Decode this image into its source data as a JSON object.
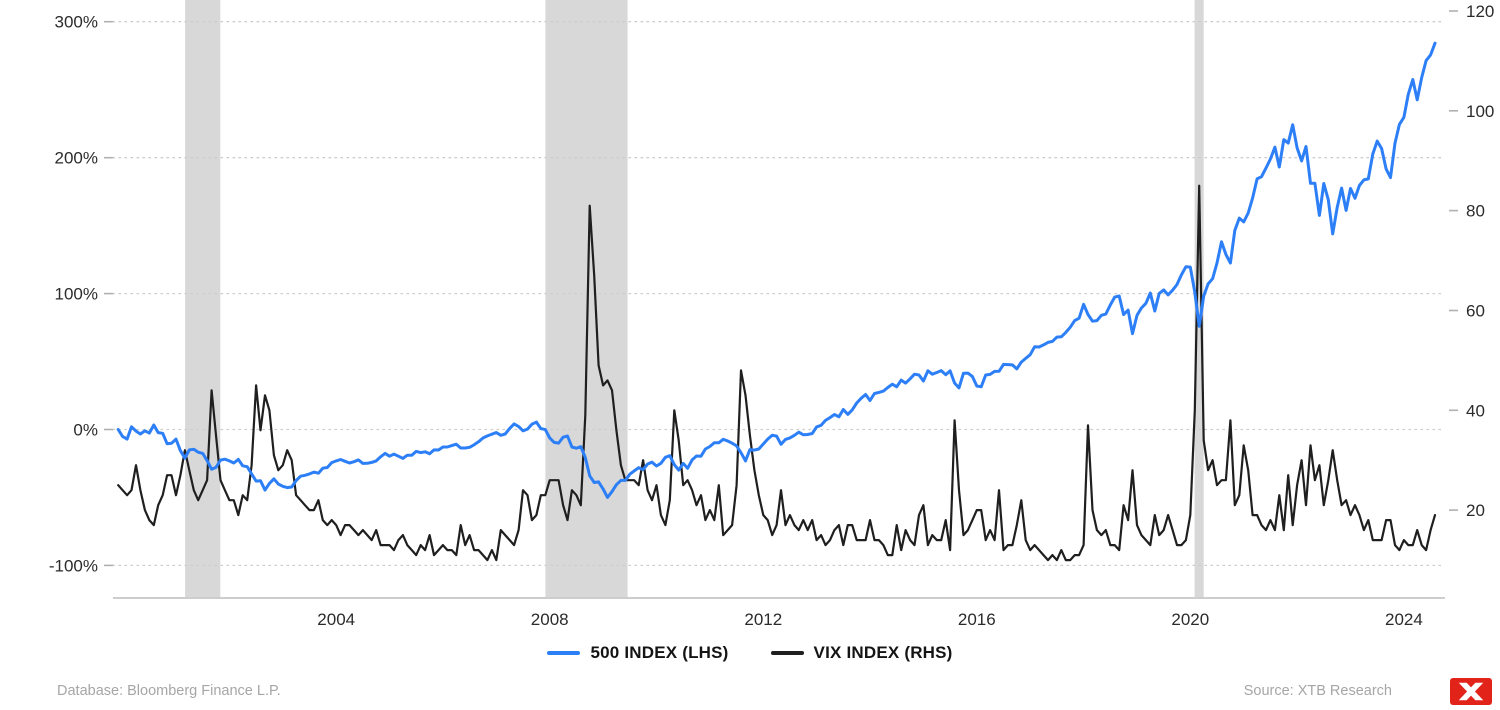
{
  "legend": [
    {
      "id": "sp500-line",
      "label": "500 INDEX (LHS)",
      "color": "#2d7ff7"
    },
    {
      "id": "vix-line",
      "label": "VIX INDEX (RHS)",
      "color": "#1f1f1f"
    }
  ],
  "footer": {
    "database": "Database: Bloomberg Finance L.P.",
    "source": "Source: XTB Research"
  },
  "colors": {
    "sp500": "#2d7ff7",
    "vix": "#1f1f1f",
    "grid": "#cdcdcd",
    "tick": "#b0b0b0",
    "band": "#d8d8d8",
    "axis_text": "#2b2b2b",
    "footer_text": "#a6a6a6",
    "logo_red": "#e2231a"
  },
  "chart_data": {
    "type": "line",
    "x_start": 1999.9167,
    "x_step": 0.0833333,
    "x_domain": [
      1999.82,
      2024.77
    ],
    "x_ticks": [
      2004,
      2008,
      2012,
      2016,
      2020,
      2024
    ],
    "left_axis": {
      "suffix": "%",
      "ticks": [
        300,
        200,
        100,
        0,
        -100
      ],
      "domain": [
        -124,
        316
      ]
    },
    "right_axis": {
      "suffix": "",
      "ticks": [
        120,
        100,
        80,
        60,
        40,
        20
      ],
      "domain": [
        2.4,
        122.2
      ]
    },
    "grid": "horizontal-dotted",
    "legend_position": "bottom-center",
    "shaded_periods": [
      [
        2001.17,
        2001.83
      ],
      [
        2007.92,
        2009.46
      ],
      [
        2020.08,
        2020.25
      ]
    ],
    "series": [
      {
        "id": "vix-line",
        "name": "VIX INDEX (RHS)",
        "axis": "right",
        "color": "#1f1f1f",
        "width": 2.2,
        "values": [
          25,
          24,
          23,
          24,
          29,
          24,
          20,
          18,
          17,
          21,
          23,
          27,
          27,
          23,
          27,
          32,
          28,
          24,
          22,
          24,
          26,
          44,
          35,
          26,
          24,
          22,
          22,
          19,
          23,
          22,
          29,
          45,
          36,
          43,
          40,
          31,
          28,
          29,
          32,
          30,
          23,
          22,
          21,
          20,
          20,
          22,
          18,
          17,
          18,
          17,
          15,
          17,
          17,
          16,
          15,
          16,
          15,
          14,
          16,
          13,
          13,
          13,
          12,
          14,
          15,
          13,
          12,
          11,
          13,
          12,
          15,
          11,
          12,
          13,
          12,
          12,
          11,
          17,
          13,
          15,
          12,
          12,
          11,
          10,
          12,
          10,
          16,
          15,
          14,
          13,
          16,
          24,
          23,
          18,
          19,
          23,
          23,
          26,
          26,
          26,
          21,
          18,
          24,
          23,
          21,
          39,
          81,
          67,
          49,
          45,
          46,
          44,
          36,
          29,
          26,
          26,
          26,
          25,
          30,
          24,
          22,
          25,
          19,
          17,
          22,
          40,
          34,
          25,
          26,
          24,
          21,
          23,
          18,
          20,
          18,
          25,
          15,
          16,
          17,
          25,
          48,
          43,
          35,
          28,
          23,
          19,
          18,
          15,
          17,
          24,
          17,
          19,
          17,
          16,
          18,
          16,
          18,
          14,
          15,
          13,
          14,
          16,
          17,
          13,
          17,
          17,
          14,
          14,
          14,
          18,
          14,
          14,
          13,
          11,
          11,
          17,
          12,
          16,
          14,
          13,
          19,
          21,
          13,
          15,
          14,
          14,
          18,
          12,
          38,
          24,
          15,
          16,
          18,
          20,
          20,
          14,
          16,
          14,
          24,
          12,
          13,
          13,
          17,
          22,
          14,
          12,
          13,
          12,
          11,
          10,
          11,
          10,
          12,
          10,
          10,
          11,
          11,
          13,
          37,
          20,
          16,
          15,
          16,
          13,
          13,
          12,
          21,
          18,
          28,
          17,
          15,
          14,
          13,
          19,
          15,
          16,
          19,
          16,
          13,
          13,
          14,
          19,
          40,
          85,
          34,
          28,
          30,
          25,
          26,
          26,
          38,
          21,
          23,
          33,
          28,
          19,
          19,
          17,
          16,
          18,
          16,
          23,
          16,
          27,
          17,
          25,
          30,
          21,
          33,
          26,
          29,
          21,
          26,
          32,
          26,
          21,
          22,
          19,
          21,
          19,
          16,
          18,
          14,
          14,
          14,
          18,
          18,
          13,
          12,
          14,
          13,
          13,
          16,
          13,
          12,
          16,
          19
        ]
      },
      {
        "id": "sp500-line",
        "name": "500 INDEX (LHS)",
        "axis": "left",
        "color": "#2d7ff7",
        "width": 3,
        "values": [
          0,
          -5.2,
          -7.1,
          2,
          -1.2,
          -3.3,
          -1,
          -2.7,
          3.3,
          -2.3,
          -2.8,
          -10.5,
          -10.2,
          -7.1,
          -15.6,
          -21.1,
          -15,
          -14.6,
          -16.7,
          -17.6,
          -22.9,
          -29.2,
          -27.9,
          -22.5,
          -21.9,
          -23.1,
          -24.7,
          -22,
          -26.7,
          -27.4,
          -32.7,
          -38,
          -37.7,
          -44.6,
          -39.7,
          -36.3,
          -40.1,
          -41.8,
          -42.8,
          -42.3,
          -37.6,
          -34.4,
          -33.7,
          -32.7,
          -31.4,
          -32.2,
          -28.5,
          -28,
          -24.4,
          -23.1,
          -22.1,
          -23.4,
          -24.7,
          -23.7,
          -22.4,
          -25,
          -24.9,
          -24.2,
          -23.1,
          -20.1,
          -17.6,
          -19.7,
          -18.1,
          -19.7,
          -21.3,
          -18.9,
          -19,
          -16.1,
          -17,
          -16.4,
          -17.9,
          -15,
          -15.1,
          -12.9,
          -12.9,
          -11.9,
          -10.8,
          -13.6,
          -13.6,
          -13.1,
          -11.3,
          -9.1,
          -6.3,
          -4.7,
          -3.5,
          -2.2,
          -4.3,
          -3.3,
          0.8,
          4.1,
          2.2,
          -1,
          0.3,
          3.9,
          5.4,
          0.7,
          -0.1,
          -6.2,
          -9.5,
          -10,
          -5.7,
          -4.8,
          -12.9,
          -13.8,
          -12.7,
          -20.7,
          -34.1,
          -39,
          -38.6,
          -43.8,
          -50,
          -45.7,
          -40.6,
          -37.5,
          -37.5,
          -32.9,
          -30.5,
          -28.1,
          -29.5,
          -25.4,
          -24.1,
          -26.9,
          -24.9,
          -20.5,
          -19.3,
          -25.9,
          -29.9,
          -25,
          -28.6,
          -22.4,
          -19.5,
          -19.7,
          -14.4,
          -12.5,
          -9.7,
          -9.8,
          -7.2,
          -8.5,
          -10.1,
          -12.1,
          -17.1,
          -23.1,
          -14.8,
          -15.2,
          -14.4,
          -10.7,
          -7.1,
          -4.2,
          -4.9,
          -10.9,
          -7.3,
          -6.2,
          -4.3,
          -2,
          -3.9,
          -3.7,
          -3,
          1.9,
          3.1,
          6.7,
          8.7,
          11,
          9.3,
          14.7,
          11.1,
          14.4,
          19.5,
          22.9,
          25.7,
          21.3,
          26.5,
          27.3,
          28.2,
          30.9,
          33.3,
          31.4,
          36.3,
          34.1,
          37.3,
          40.7,
          40.1,
          35.7,
          43.2,
          40.7,
          41.9,
          43.3,
          40.3,
          43.1,
          34.1,
          30.6,
          41.4,
          41.5,
          39,
          32,
          31.4,
          40.1,
          40.5,
          42.7,
          42.8,
          47.9,
          47.7,
          47.5,
          44.6,
          49.6,
          52.3,
          55,
          60.8,
          60.7,
          62.2,
          64.1,
          64.8,
          68,
          68.2,
          71.4,
          75.2,
          80.1,
          81.9,
          92.1,
          84.6,
          79.7,
          80.1,
          84,
          84.9,
          91.6,
          97.4,
          98.2,
          84.5,
          87.8,
          70.5,
          84,
          89.4,
          92.8,
          100.4,
          87.2,
          100.1,
          102.7,
          99,
          102.5,
          106.7,
          113.7,
          119.8,
          119.5,
          101,
          75.9,
          98.1,
          107.1,
          110.9,
          122.5,
          138.1,
          128.8,
          122.4,
          146.4,
          155.5,
          152.7,
          159.3,
          170.3,
          184.4,
          186,
          192.4,
          199,
          207.7,
          193.1,
          213.3,
          210.7,
          224.2,
          207.2,
          197.6,
          208.2,
          181.1,
          181.1,
          157.5,
          181,
          169,
          143.9,
          163.4,
          177.6,
          161.2,
          177.3,
          170.1,
          179.5,
          183.6,
          184.4,
          202.7,
          212.2,
          206.7,
          191.7,
          185.3,
          210.7,
          224.5,
          229.7,
          246.7,
          257.4,
          242.6,
          259,
          271.4,
          275.6,
          284.2
        ]
      }
    ]
  }
}
